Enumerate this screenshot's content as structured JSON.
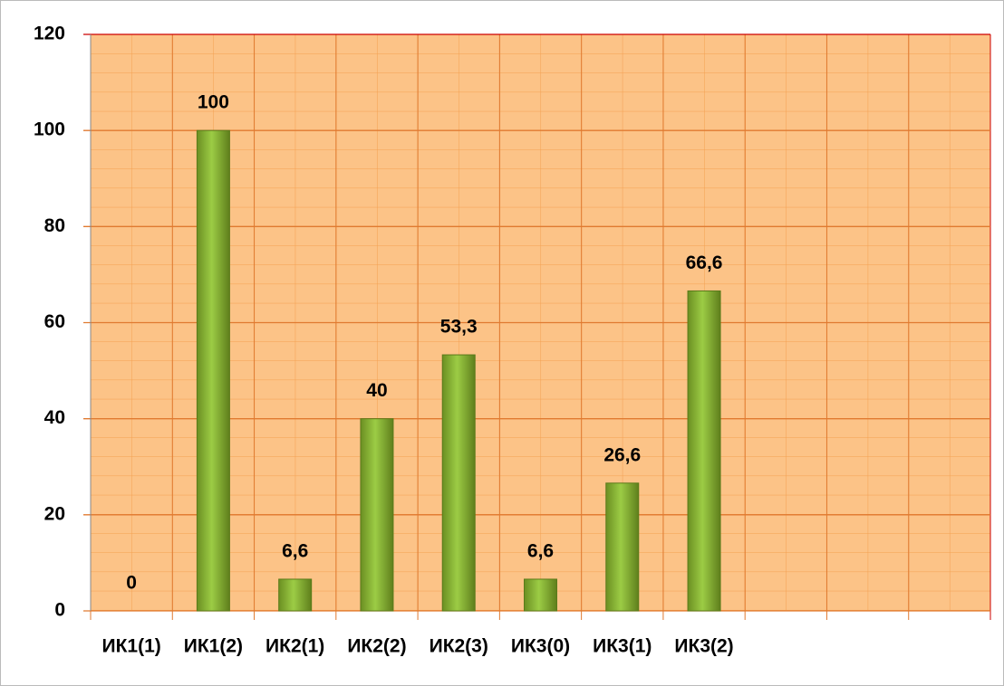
{
  "chart_data": {
    "type": "bar",
    "categories": [
      "ИК1(1)",
      "ИК1(2)",
      "ИК2(1)",
      "ИК2(2)",
      "ИК2(3)",
      "ИК3(0)",
      "ИК3(1)",
      "ИК3(2)",
      null,
      null,
      null
    ],
    "values": [
      0,
      100,
      6.6,
      40,
      53.3,
      6.6,
      26.6,
      66.6,
      null,
      null,
      null
    ],
    "value_labels": [
      "0",
      "100",
      "6,6",
      "40",
      "53,3",
      "6,6",
      "26,6",
      "66,6",
      null,
      null,
      null
    ],
    "color": "#8db43a",
    "ylim": [
      0,
      120
    ],
    "yticks": [
      0,
      20,
      40,
      60,
      80,
      100,
      120
    ],
    "grid": true
  }
}
